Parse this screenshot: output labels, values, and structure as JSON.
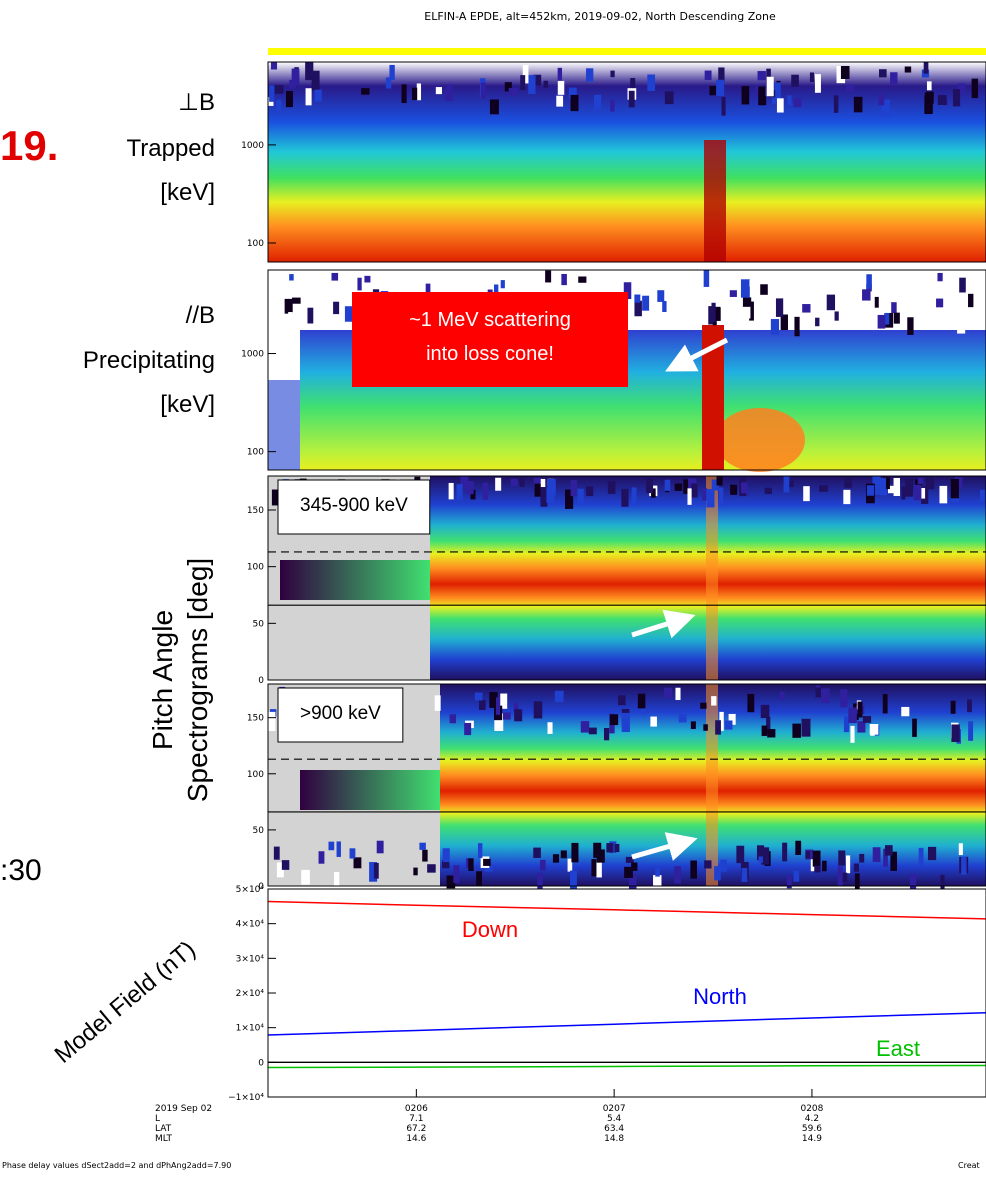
{
  "title": "ELFIN-A EPDE, alt=452km, 2019-09-02, North Descending Zone",
  "figure_number": "19.",
  "time_label": ":30",
  "annotation": {
    "lines": [
      "~1 MeV scattering",
      "into loss cone!"
    ]
  },
  "pitch_angle_label": [
    "Pitch Angle",
    "Spectrograms [deg]"
  ],
  "chart_data": [
    {
      "type": "spectrogram",
      "y_label": [
        "⊥B",
        "Trapped",
        "[keV]"
      ],
      "log_scale": true,
      "ylim": [
        64,
        7000
      ],
      "yticks": [
        100,
        1000
      ]
    },
    {
      "type": "spectrogram",
      "y_label": [
        "//B",
        "Precipitating",
        "[keV]"
      ],
      "log_scale": true,
      "ylim": [
        65,
        7100
      ],
      "yticks": [
        100,
        1000
      ]
    },
    {
      "type": "spectrogram",
      "label": "345-900 keV",
      "log_scale": false,
      "ylim": [
        0,
        180
      ],
      "yticks": [
        0,
        50,
        100,
        150
      ],
      "reference_lines": [
        {
          "value": 113,
          "style": "dashed"
        },
        {
          "value": 66,
          "style": "solid"
        }
      ]
    },
    {
      "type": "spectrogram",
      "label": ">900 keV",
      "log_scale": false,
      "ylim": [
        0,
        180
      ],
      "yticks": [
        0,
        50,
        100,
        150
      ],
      "reference_lines": [
        {
          "value": 113,
          "style": "dashed"
        },
        {
          "value": 66,
          "style": "solid"
        }
      ]
    },
    {
      "type": "line",
      "y_label": "Model Field (nT)",
      "xlim": [
        5.25,
        8.88
      ],
      "xticks": [
        {
          "value": 6,
          "label": "0206"
        },
        {
          "value": 7,
          "label": "0207"
        },
        {
          "value": 8,
          "label": "0208"
        }
      ],
      "ylim": [
        -10000,
        50000
      ],
      "yticks": [
        {
          "value": 50000,
          "label": "5×10⁴"
        },
        {
          "value": 40000,
          "label": "4×10⁴"
        },
        {
          "value": 30000,
          "label": "3×10⁴"
        },
        {
          "value": 20000,
          "label": "2×10⁴"
        },
        {
          "value": 10000,
          "label": "1×10⁴"
        },
        0,
        {
          "value": -10000,
          "label": "−1×10⁴"
        }
      ],
      "zero_line": true,
      "series": [
        {
          "name": "Down",
          "color": "#ff0000",
          "x": [
            5.25,
            6,
            7,
            8,
            8.88
          ],
          "values": [
            46400,
            45300,
            44000,
            42600,
            41400
          ]
        },
        {
          "name": "North",
          "color": "#0000ff",
          "x": [
            5.25,
            6,
            7,
            8,
            8.88
          ],
          "values": [
            7900,
            9200,
            11000,
            12800,
            14300
          ]
        },
        {
          "name": "East",
          "color": "#00c000",
          "x": [
            5.25,
            6,
            7,
            8,
            8.88
          ],
          "values": [
            -1500,
            -1400,
            -1200,
            -1000,
            -900
          ]
        }
      ],
      "ephemeris": {
        "row_labels": [
          "2019 Sep 02",
          "L",
          "LAT",
          "MLT"
        ],
        "rows": [
          [
            "7.1",
            "5.4",
            "4.2"
          ],
          [
            "67.2",
            "63.4",
            "59.6"
          ],
          [
            "14.6",
            "14.8",
            "14.9"
          ]
        ]
      }
    }
  ],
  "footer": {
    "note": "Phase delay values dSect2add=2 and dPhAng2add=7.90",
    "credit": "Creat"
  }
}
